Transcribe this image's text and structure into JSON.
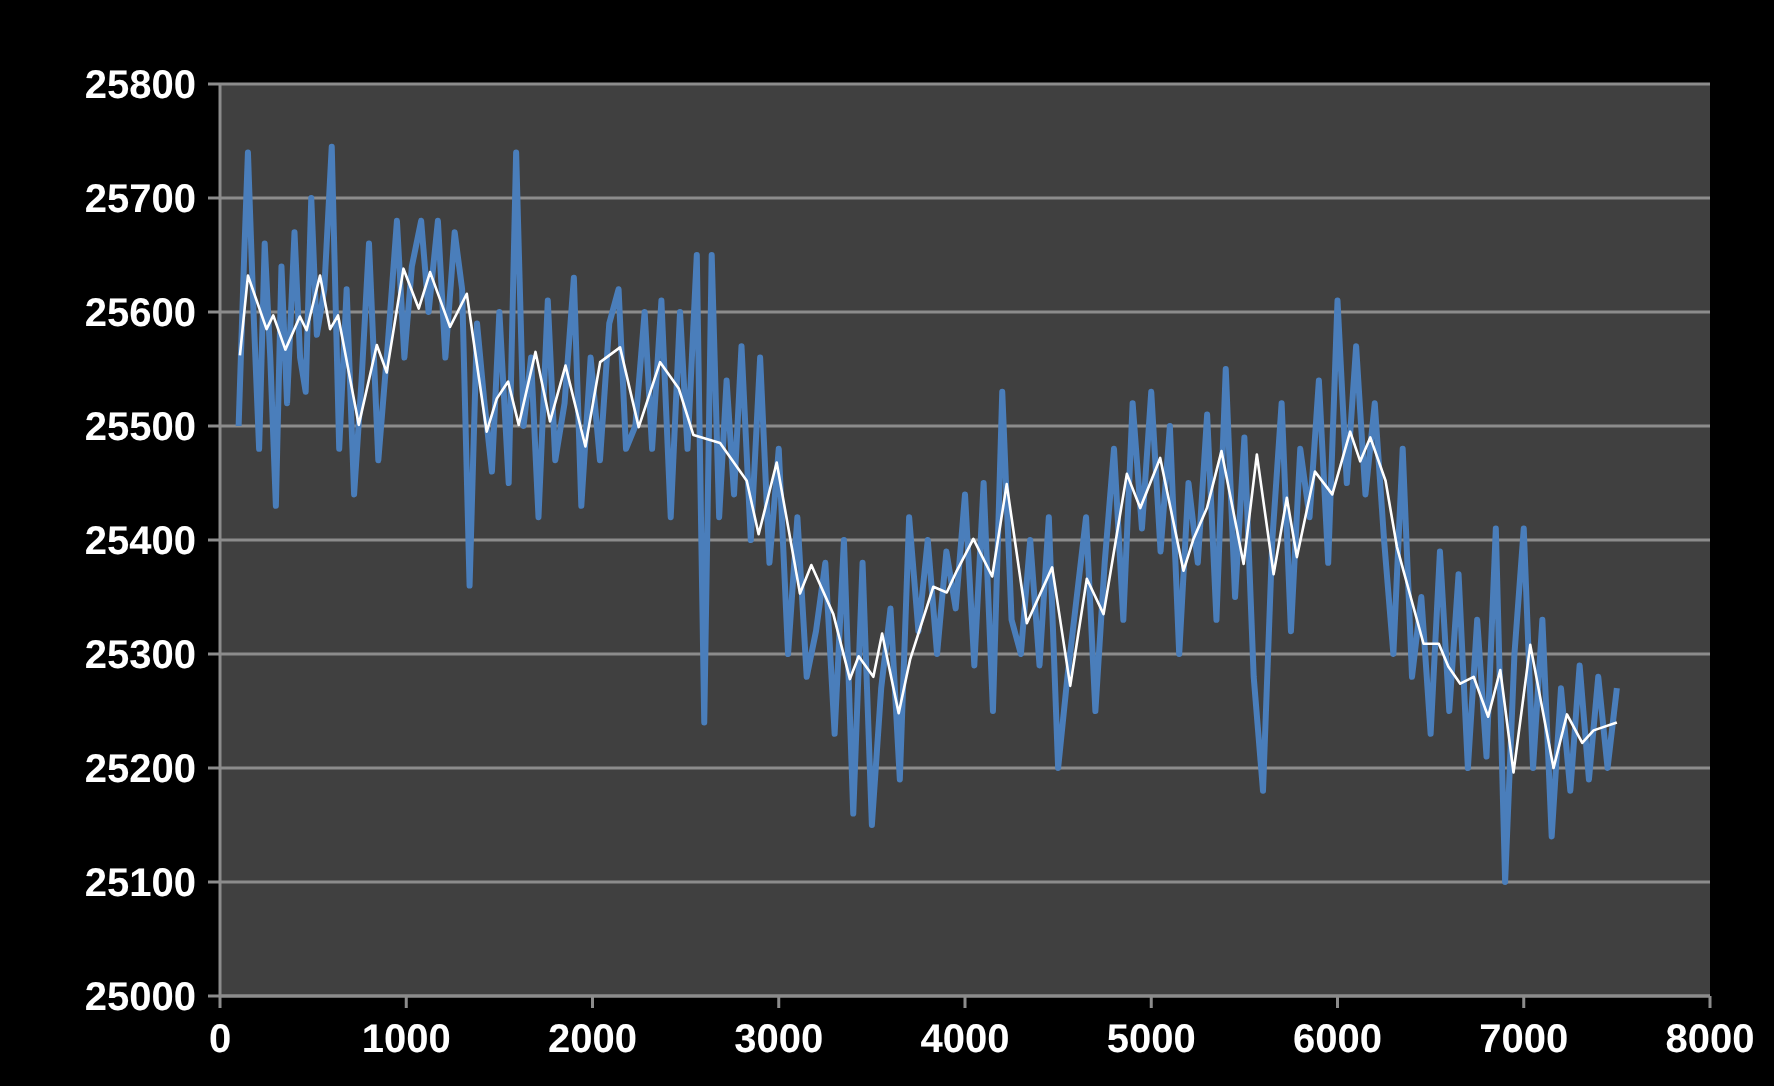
{
  "chart_data": {
    "type": "line",
    "xlim": [
      0,
      8000
    ],
    "xticks": [
      0,
      1000,
      2000,
      3000,
      4000,
      5000,
      6000,
      7000,
      8000
    ],
    "ylim": [
      25000,
      25800
    ],
    "yticks": [
      25000,
      25100,
      25200,
      25300,
      25400,
      25500,
      25600,
      25700,
      25800
    ],
    "grid": "y",
    "marker": "none",
    "series": [
      {
        "color": "#4a7ebb",
        "x": [
          100,
          130,
          150,
          180,
          210,
          240,
          270,
          300,
          330,
          360,
          400,
          430,
          460,
          490,
          520,
          560,
          600,
          640,
          680,
          720,
          760,
          800,
          850,
          900,
          950,
          990,
          1030,
          1080,
          1120,
          1170,
          1210,
          1260,
          1300,
          1340,
          1380,
          1420,
          1460,
          1500,
          1550,
          1590,
          1630,
          1670,
          1710,
          1760,
          1800,
          1850,
          1900,
          1940,
          1990,
          2040,
          2090,
          2140,
          2180,
          2230,
          2280,
          2320,
          2370,
          2420,
          2470,
          2510,
          2560,
          2600,
          2640,
          2680,
          2720,
          2760,
          2800,
          2850,
          2900,
          2950,
          3000,
          3050,
          3100,
          3150,
          3200,
          3250,
          3300,
          3350,
          3400,
          3450,
          3500,
          3550,
          3600,
          3650,
          3700,
          3750,
          3800,
          3850,
          3900,
          3950,
          4000,
          4050,
          4100,
          4150,
          4200,
          4250,
          4300,
          4350,
          4400,
          4450,
          4500,
          4550,
          4600,
          4650,
          4700,
          4750,
          4800,
          4850,
          4900,
          4950,
          5000,
          5050,
          5100,
          5150,
          5200,
          5250,
          5300,
          5350,
          5400,
          5450,
          5500,
          5550,
          5600,
          5650,
          5700,
          5750,
          5800,
          5850,
          5900,
          5950,
          6000,
          6050,
          6100,
          6150,
          6200,
          6250,
          6300,
          6350,
          6400,
          6450,
          6500,
          6550,
          6600,
          6650,
          6700,
          6750,
          6800,
          6850,
          6900,
          6950,
          7000,
          7050,
          7100,
          7150,
          7200,
          7250,
          7300,
          7350,
          7400,
          7450,
          7500
        ],
        "values": [
          25500,
          25650,
          25740,
          25600,
          25480,
          25660,
          25560,
          25430,
          25640,
          25520,
          25670,
          25560,
          25530,
          25700,
          25580,
          25620,
          25745,
          25480,
          25620,
          25440,
          25540,
          25660,
          25470,
          25570,
          25680,
          25560,
          25640,
          25680,
          25600,
          25680,
          25560,
          25670,
          25620,
          25360,
          25590,
          25520,
          25460,
          25600,
          25450,
          25740,
          25500,
          25560,
          25420,
          25610,
          25470,
          25520,
          25630,
          25430,
          25560,
          25470,
          25590,
          25620,
          25480,
          25500,
          25600,
          25480,
          25610,
          25420,
          25600,
          25480,
          25650,
          25240,
          25650,
          25420,
          25540,
          25440,
          25570,
          25400,
          25560,
          25380,
          25480,
          25300,
          25420,
          25280,
          25320,
          25380,
          25230,
          25400,
          25160,
          25380,
          25150,
          25270,
          25340,
          25190,
          25420,
          25320,
          25400,
          25300,
          25390,
          25340,
          25440,
          25290,
          25450,
          25250,
          25530,
          25330,
          25300,
          25400,
          25290,
          25420,
          25200,
          25280,
          25350,
          25420,
          25250,
          25380,
          25480,
          25330,
          25520,
          25410,
          25530,
          25390,
          25500,
          25300,
          25450,
          25380,
          25510,
          25330,
          25550,
          25350,
          25490,
          25280,
          25180,
          25400,
          25520,
          25320,
          25480,
          25420,
          25540,
          25380,
          25610,
          25450,
          25570,
          25440,
          25520,
          25400,
          25300,
          25480,
          25280,
          25350,
          25230,
          25390,
          25250,
          25370,
          25200,
          25330,
          25210,
          25410,
          25100,
          25300,
          25410,
          25200,
          25330,
          25140,
          25270,
          25180,
          25290,
          25190,
          25280,
          25200,
          25270
        ]
      },
      {
        "color": "#ffffff",
        "x": [
          107,
          150,
          250,
          286,
          351,
          429,
          465,
          537,
          591,
          634,
          745,
          842,
          895,
          985,
          1067,
          1128,
          1235,
          1325,
          1432,
          1486,
          1547,
          1604,
          1694,
          1772,
          1855,
          1962,
          2041,
          2148,
          2248,
          2363,
          2463,
          2542,
          2685,
          2828,
          2892,
          2989,
          3114,
          3175,
          3293,
          3382,
          3429,
          3508,
          3555,
          3644,
          3705,
          3830,
          3902,
          3956,
          4045,
          4146,
          4224,
          4332,
          4468,
          4565,
          4654,
          4744,
          4869,
          4941,
          5048,
          5173,
          5227,
          5299,
          5377,
          5496,
          5567,
          5657,
          5728,
          5782,
          5879,
          5972,
          6068,
          6122,
          6176,
          6258,
          6319,
          6462,
          6544,
          6595,
          6659,
          6731,
          6809,
          6874,
          6945,
          7035,
          7160,
          7232,
          7314,
          7375,
          7500
        ],
        "values": [
          25562,
          25632,
          25585,
          25597,
          25567,
          25596,
          25584,
          25632,
          25585,
          25597,
          25501,
          25571,
          25547,
          25638,
          25603,
          25635,
          25587,
          25616,
          25495,
          25524,
          25539,
          25501,
          25565,
          25504,
          25553,
          25482,
          25556,
          25569,
          25499,
          25556,
          25533,
          25492,
          25485,
          25452,
          25405,
          25468,
          25353,
          25378,
          25335,
          25278,
          25298,
          25280,
          25318,
          25248,
          25295,
          25359,
          25354,
          25373,
          25401,
          25368,
          25449,
          25327,
          25376,
          25272,
          25366,
          25335,
          25458,
          25428,
          25472,
          25373,
          25401,
          25428,
          25478,
          25379,
          25475,
          25370,
          25437,
          25385,
          25460,
          25440,
          25495,
          25469,
          25490,
          25452,
          25394,
          25309,
          25309,
          25289,
          25274,
          25280,
          25245,
          25286,
          25196,
          25308,
          25200,
          25247,
          25222,
          25233,
          25240
        ]
      }
    ]
  }
}
